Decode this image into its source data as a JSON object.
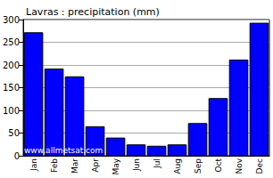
{
  "chart_data": {
    "type": "bar",
    "title": "Lavras : precipitation (mm)",
    "categories": [
      "Jan",
      "Feb",
      "Mar",
      "Apr",
      "May",
      "Jun",
      "Jul",
      "Aug",
      "Sep",
      "Oct",
      "Nov",
      "Dec"
    ],
    "values": [
      272,
      192,
      175,
      65,
      40,
      25,
      22,
      25,
      72,
      127,
      212,
      293
    ],
    "color": "#0000ff",
    "ylim": [
      0,
      300
    ],
    "yticks": [
      0,
      50,
      100,
      150,
      200,
      250,
      300
    ],
    "grid": true,
    "annotations": [
      "www.allmetsat.com"
    ]
  }
}
